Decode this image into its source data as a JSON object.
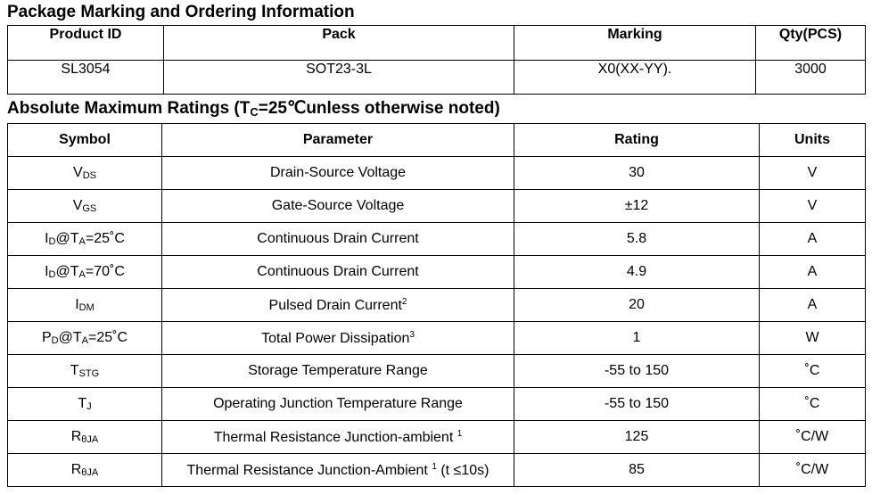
{
  "ordering": {
    "title": "Package Marking and Ordering Information",
    "headers": [
      "Product ID",
      "Pack",
      "Marking",
      "Qty(PCS)"
    ],
    "row": [
      "SL3054",
      "SOT23-3L",
      "X0(XX-YY).",
      "3000"
    ]
  },
  "ratings": {
    "title_pre": "Absolute Maximum Ratings (T",
    "title_sub": "C",
    "title_post": "=25℃unless otherwise noted)",
    "headers": [
      "Symbol",
      "Parameter",
      "Rating",
      "Units"
    ],
    "rows": [
      {
        "sym_main": "V",
        "sym_sub": "DS",
        "sym_tail": "",
        "parameter": "Drain-Source Voltage",
        "param_sup": "",
        "param_tail": "",
        "rating": "30",
        "units": "V"
      },
      {
        "sym_main": "V",
        "sym_sub": "GS",
        "sym_tail": "",
        "parameter": "Gate-Source Voltage",
        "param_sup": "",
        "param_tail": "",
        "rating": "±12",
        "units": "V"
      },
      {
        "sym_main": "I",
        "sym_sub": "D",
        "sym_tail": "@T",
        "sym_sub2": "A",
        "sym_tail2": "=25˚C",
        "parameter": "Continuous Drain Current",
        "param_sup": "",
        "param_tail": "",
        "rating": "5.8",
        "units": "A"
      },
      {
        "sym_main": "I",
        "sym_sub": "D",
        "sym_tail": "@T",
        "sym_sub2": "A",
        "sym_tail2": "=70˚C",
        "parameter": "Continuous Drain Current",
        "param_sup": "",
        "param_tail": "",
        "rating": "4.9",
        "units": "A"
      },
      {
        "sym_main": "I",
        "sym_sub": "DM",
        "sym_tail": "",
        "parameter": "Pulsed Drain Current",
        "param_sup": "2",
        "param_tail": "",
        "rating": "20",
        "units": "A"
      },
      {
        "sym_main": "P",
        "sym_sub": "D",
        "sym_tail": "@T",
        "sym_sub2": "A",
        "sym_tail2": "=25˚C",
        "parameter": "Total Power Dissipation",
        "param_sup": "3",
        "param_tail": "",
        "rating": "1",
        "units": "W"
      },
      {
        "sym_main": "T",
        "sym_sub": "STG",
        "sym_tail": "",
        "parameter": "Storage Temperature Range",
        "param_sup": "",
        "param_tail": "",
        "rating": "-55 to 150",
        "units": "˚C"
      },
      {
        "sym_main": "T",
        "sym_sub": "J",
        "sym_tail": "",
        "parameter": "Operating Junction Temperature Range",
        "param_sup": "",
        "param_tail": "",
        "rating": "-55 to 150",
        "units": "˚C"
      },
      {
        "sym_main": "R",
        "sym_sub": "θJA",
        "sym_tail": "",
        "parameter": "Thermal Resistance Junction-ambient ",
        "param_sup": "1",
        "param_tail": "",
        "rating": "125",
        "units": "˚C/W"
      },
      {
        "sym_main": "R",
        "sym_sub": "θJA",
        "sym_tail": "",
        "parameter": "Thermal Resistance Junction-Ambient ",
        "param_sup": "1",
        "param_tail": " (t ≤10s)",
        "rating": "85",
        "units": "˚C/W"
      }
    ]
  }
}
